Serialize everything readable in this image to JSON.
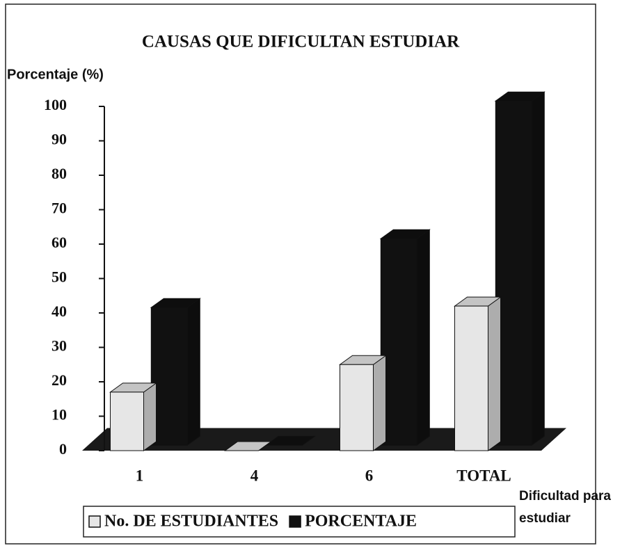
{
  "chart_data": {
    "type": "bar3d",
    "title": "CAUSAS QUE DIFICULTAN ESTUDIAR",
    "y_label": "Porcentaje (%)",
    "x_label": "Dificultad para estudiar",
    "categories": [
      "1",
      "4",
      "6",
      "TOTAL"
    ],
    "series": [
      {
        "name": "No. DE ESTUDIANTES",
        "color": "#e6e6e6",
        "values": [
          17,
          0,
          25,
          42
        ]
      },
      {
        "name": "PORCENTAJE",
        "color": "#111111",
        "values": [
          40,
          0,
          60,
          100
        ]
      }
    ],
    "ylim": [
      0,
      100
    ],
    "yticks": [
      0,
      10,
      20,
      30,
      40,
      50,
      60,
      70,
      80,
      90,
      100
    ],
    "grid": false
  }
}
